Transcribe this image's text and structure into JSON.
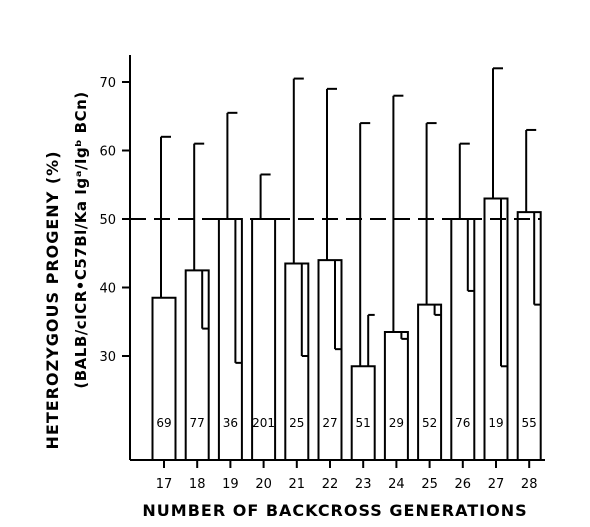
{
  "chart_data": {
    "type": "bar",
    "title": "",
    "xlabel": "NUMBER OF BACKCROSS GENERATIONS",
    "ylabel": "HETEROZYGOUS PROGENY (%)",
    "ylabel2": "(BALB/cICR•C57Bl/Ka Igᵃ/Igᵇ BCn)",
    "categories": [
      "17",
      "18",
      "19",
      "20",
      "21",
      "22",
      "23",
      "24",
      "25",
      "26",
      "27",
      "28"
    ],
    "values": [
      38.5,
      42.5,
      50,
      50,
      43.5,
      44,
      28.5,
      33.5,
      37.5,
      50,
      53,
      51
    ],
    "error_upper": [
      62,
      61,
      65.5,
      56.5,
      70.5,
      69,
      64,
      68,
      64,
      61,
      72,
      63
    ],
    "error_lower": [
      null,
      34,
      29,
      null,
      30,
      31,
      36,
      32.5,
      36,
      39.5,
      28.5,
      37.5
    ],
    "n_labels": [
      "69",
      "77",
      "36",
      "201",
      "25",
      "27",
      "51",
      "29",
      "52",
      "76",
      "19",
      "55"
    ],
    "ylim": [
      20,
      73
    ],
    "yticks": [
      "30",
      "40",
      "50",
      "60",
      "70"
    ],
    "reference_line": 50
  }
}
